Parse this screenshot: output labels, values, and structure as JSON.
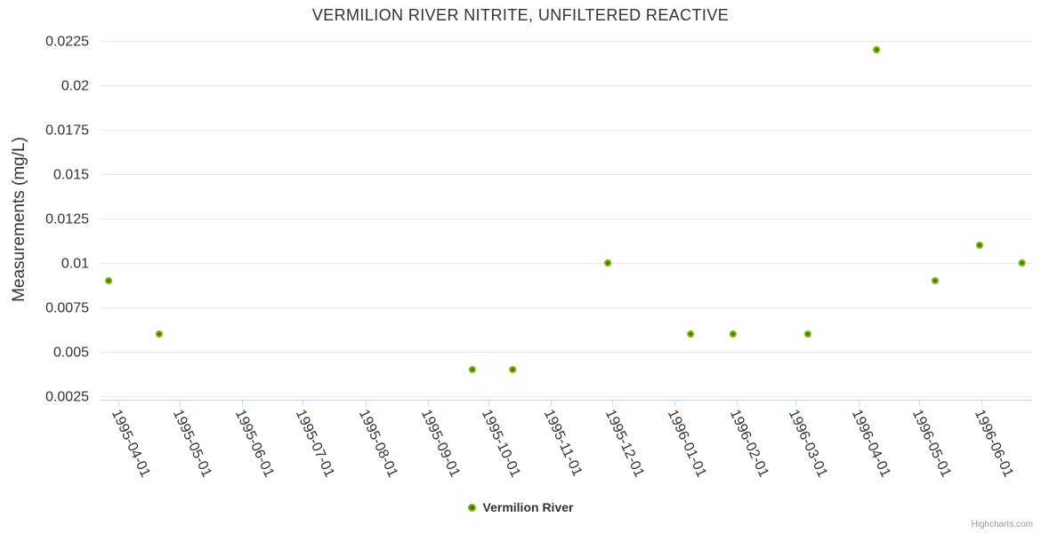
{
  "chart_data": {
    "type": "scatter",
    "title": "VERMILION RIVER NITRITE, UNFILTERED REACTIVE",
    "xlabel": "",
    "ylabel": "Measurements (mg/L)",
    "x_type": "datetime",
    "grid": "horizontal-only",
    "legend_position": "bottom-center",
    "credit": "Highcharts.com",
    "xlim": [
      "1995-03-23",
      "1996-06-26"
    ],
    "ylim": [
      0.0023,
      0.0228
    ],
    "yticks": [
      0.0025,
      0.005,
      0.0075,
      0.01,
      0.0125,
      0.015,
      0.0175,
      0.02,
      0.0225
    ],
    "ytick_labels": [
      "0.0025",
      "0.005",
      "0.0075",
      "0.01",
      "0.0125",
      "0.015",
      "0.0175",
      "0.02",
      "0.0225"
    ],
    "xticks": [
      "1995-04-01",
      "1995-05-01",
      "1995-06-01",
      "1995-07-01",
      "1995-08-01",
      "1995-09-01",
      "1995-10-01",
      "1995-11-01",
      "1995-12-01",
      "1996-01-01",
      "1996-02-01",
      "1996-03-01",
      "1996-04-01",
      "1996-05-01",
      "1996-06-01"
    ],
    "series": [
      {
        "name": "Vermilion River",
        "color": "#7cb500",
        "marker_center_color": "#3f6d00",
        "data": [
          {
            "x": "1995-03-27",
            "y": 0.009
          },
          {
            "x": "1995-04-21",
            "y": 0.006
          },
          {
            "x": "1995-09-23",
            "y": 0.004
          },
          {
            "x": "1995-10-13",
            "y": 0.004
          },
          {
            "x": "1995-11-29",
            "y": 0.01
          },
          {
            "x": "1996-01-09",
            "y": 0.006
          },
          {
            "x": "1996-01-30",
            "y": 0.006
          },
          {
            "x": "1996-03-07",
            "y": 0.006
          },
          {
            "x": "1996-04-10",
            "y": 0.022
          },
          {
            "x": "1996-05-09",
            "y": 0.009
          },
          {
            "x": "1996-05-31",
            "y": 0.011
          },
          {
            "x": "1996-06-21",
            "y": 0.01
          }
        ]
      }
    ],
    "colors": {
      "axis_line": "#ccd6eb",
      "grid_line": "#e6e6e6",
      "text": "#333333",
      "credit_text": "#999999",
      "background": "#ffffff"
    }
  }
}
